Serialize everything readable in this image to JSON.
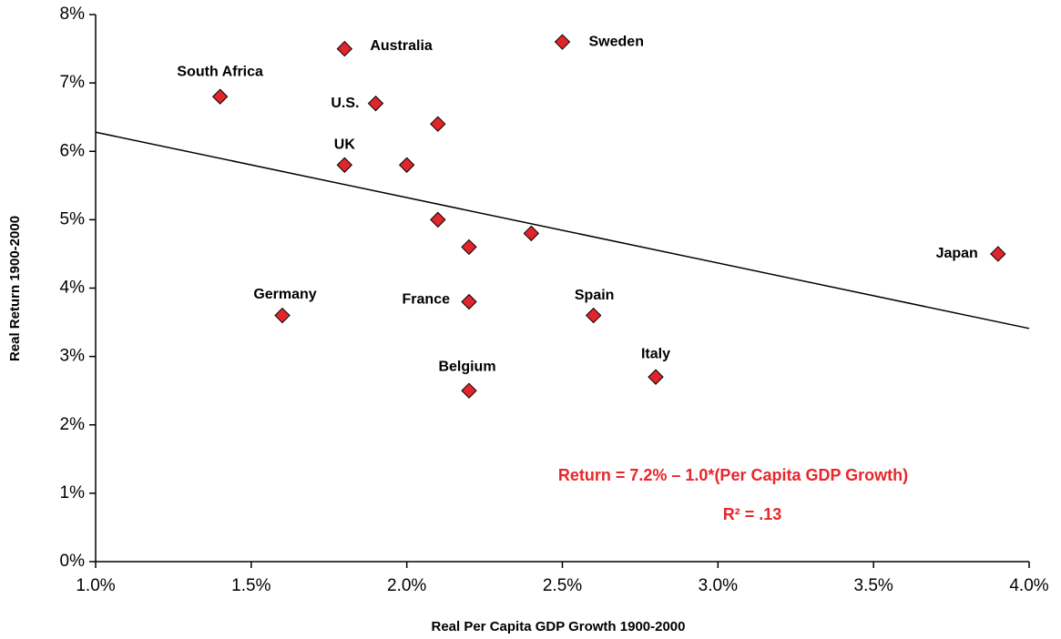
{
  "chart_data": {
    "type": "scatter",
    "x_label": "Real Per Capita GDP Growth 1900-2000",
    "y_label": "Real Return 1900-2000",
    "xlim": [
      1.0,
      4.0
    ],
    "ylim": [
      0,
      8
    ],
    "xticks": [
      {
        "value": 1.0,
        "label": "1.0%"
      },
      {
        "value": 1.5,
        "label": "1.5%"
      },
      {
        "value": 2.0,
        "label": "2.0%"
      },
      {
        "value": 2.5,
        "label": "2.5%"
      },
      {
        "value": 3.0,
        "label": "3.0%"
      },
      {
        "value": 3.5,
        "label": "3.5%"
      },
      {
        "value": 4.0,
        "label": "4.0%"
      }
    ],
    "yticks": [
      {
        "value": 0,
        "label": "0%"
      },
      {
        "value": 1,
        "label": "1%"
      },
      {
        "value": 2,
        "label": "2%"
      },
      {
        "value": 3,
        "label": "3%"
      },
      {
        "value": 4,
        "label": "4%"
      },
      {
        "value": 5,
        "label": "5%"
      },
      {
        "value": 6,
        "label": "6%"
      },
      {
        "value": 7,
        "label": "7%"
      },
      {
        "value": 8,
        "label": "8%"
      }
    ],
    "series": [
      {
        "color": "#e0262b",
        "x": [
          1.4,
          1.8,
          2.5,
          1.9,
          2.1,
          1.8,
          2.0,
          2.1,
          2.2,
          2.4,
          3.9,
          1.6,
          2.2,
          2.6,
          2.8,
          2.2
        ],
        "values": [
          6.8,
          7.5,
          7.6,
          6.7,
          6.4,
          5.8,
          5.8,
          5.0,
          4.6,
          4.8,
          4.5,
          3.6,
          3.8,
          3.6,
          2.7,
          2.5
        ],
        "labels": [
          "South Africa",
          "Australia",
          "Sweden",
          "U.S.",
          null,
          "UK",
          null,
          null,
          null,
          null,
          "Japan",
          "Germany",
          "France",
          "Spain",
          "Italy",
          "Belgium"
        ]
      }
    ],
    "trendline": {
      "x": [
        1.0,
        4.0
      ],
      "y": [
        6.28,
        3.41
      ],
      "color": "#000000"
    },
    "annotations": [
      "Return = 7.2% – 1.0*(Per Capita GDP Growth)",
      "R² = .13"
    ],
    "annotation_color": "#e8262b"
  }
}
